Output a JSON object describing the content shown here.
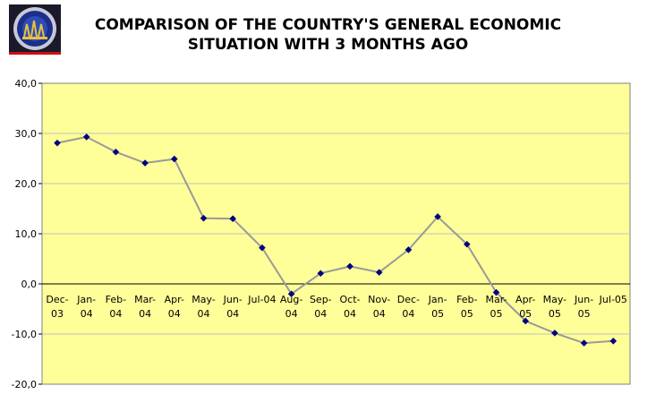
{
  "title_line1": "COMPARISON OF THE COUNTRY'S GENERAL ECONOMIC",
  "title_line2": "SITUATION WITH 3 MONTHS AGO",
  "logo_icon": "institution-emblem-icon",
  "colors": {
    "plot_background": "#ffff99",
    "line": "#999999",
    "marker": "#000080",
    "grid": "#c0c0c0"
  },
  "chart_data": {
    "type": "line",
    "title": "COMPARISON OF THE COUNTRY'S GENERAL ECONOMIC SITUATION WITH 3 MONTHS AGO",
    "xlabel": "",
    "ylabel": "",
    "ylim": [
      -20,
      40
    ],
    "yticks": [
      "40,0",
      "30,0",
      "20,0",
      "10,0",
      "0,0",
      "-10,0",
      "-20,0"
    ],
    "ytick_values": [
      40,
      30,
      20,
      10,
      0,
      -10,
      -20
    ],
    "grid": true,
    "legend": "none",
    "categories": [
      [
        "Dec-",
        "03"
      ],
      [
        "Jan-",
        "04"
      ],
      [
        "Feb-",
        "04"
      ],
      [
        "Mar-",
        "04"
      ],
      [
        "Apr-",
        "04"
      ],
      [
        "May-",
        "04"
      ],
      [
        "Jun-",
        "04"
      ],
      [
        "Jul-04"
      ],
      [
        "Aug-",
        "04"
      ],
      [
        "Sep-",
        "04"
      ],
      [
        "Oct-",
        "04"
      ],
      [
        "Nov-",
        "04"
      ],
      [
        "Dec-",
        "04"
      ],
      [
        "Jan-",
        "05"
      ],
      [
        "Feb-",
        "05"
      ],
      [
        "Mar-",
        "05"
      ],
      [
        "Apr-",
        "05"
      ],
      [
        "May-",
        "05"
      ],
      [
        "Jun-",
        "05"
      ],
      [
        "Jul-05"
      ]
    ],
    "values": [
      28.1,
      29.3,
      26.3,
      24.1,
      24.9,
      13.1,
      13.0,
      7.2,
      -2.0,
      2.1,
      3.5,
      2.3,
      6.8,
      13.4,
      7.9,
      -1.7,
      -7.4,
      -9.8,
      -11.8,
      -11.4
    ]
  }
}
